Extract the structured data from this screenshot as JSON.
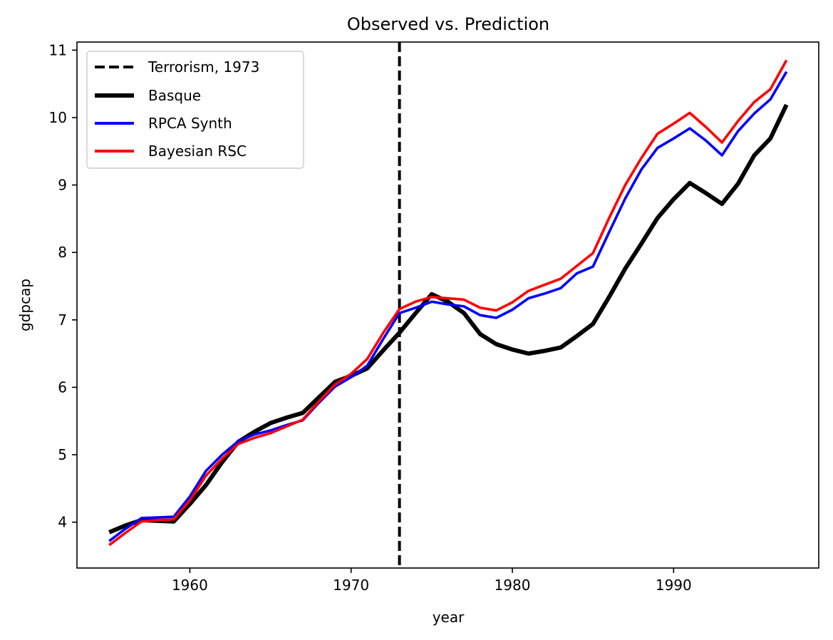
{
  "chart_data": {
    "type": "line",
    "title": "Observed vs. Prediction",
    "xlabel": "year",
    "ylabel": "gdpcap",
    "xlim": [
      1953,
      1999
    ],
    "ylim": [
      3.32,
      11.12
    ],
    "xticks": [
      1960,
      1970,
      1980,
      1990
    ],
    "yticks": [
      4,
      5,
      6,
      7,
      8,
      9,
      10,
      11
    ],
    "grid": false,
    "legend_position": "top-left",
    "x": [
      1955,
      1956,
      1957,
      1958,
      1959,
      1960,
      1961,
      1962,
      1963,
      1964,
      1965,
      1966,
      1967,
      1968,
      1969,
      1970,
      1971,
      1972,
      1973,
      1974,
      1975,
      1976,
      1977,
      1978,
      1979,
      1980,
      1981,
      1982,
      1983,
      1984,
      1985,
      1986,
      1987,
      1988,
      1989,
      1990,
      1991,
      1992,
      1993,
      1994,
      1995,
      1996,
      1997
    ],
    "vline": {
      "x": 1973,
      "label": "Terrorism, 1973",
      "color": "#000000",
      "style": "dashed"
    },
    "series": [
      {
        "name": "Basque",
        "color": "#000000",
        "width": "thick",
        "values": [
          3.85,
          3.95,
          4.03,
          4.02,
          4.01,
          4.27,
          4.55,
          4.89,
          5.19,
          5.34,
          5.47,
          5.55,
          5.62,
          5.85,
          6.08,
          6.17,
          6.28,
          6.55,
          6.81,
          7.1,
          7.38,
          7.27,
          7.1,
          6.79,
          6.64,
          6.56,
          6.5,
          6.54,
          6.59,
          6.76,
          6.94,
          7.34,
          7.76,
          8.13,
          8.51,
          8.79,
          9.03,
          8.88,
          8.72,
          9.02,
          9.44,
          9.69,
          10.19
        ]
      },
      {
        "name": "RPCA Synth",
        "color": "#0000ff",
        "width": "normal",
        "values": [
          3.72,
          3.9,
          4.06,
          4.07,
          4.08,
          4.38,
          4.76,
          5.0,
          5.2,
          5.3,
          5.36,
          5.44,
          5.51,
          5.77,
          6.01,
          6.15,
          6.32,
          6.72,
          7.1,
          7.18,
          7.27,
          7.23,
          7.2,
          7.07,
          7.03,
          7.15,
          7.32,
          7.39,
          7.47,
          7.69,
          7.79,
          8.3,
          8.8,
          9.23,
          9.55,
          9.69,
          9.84,
          9.66,
          9.44,
          9.8,
          10.06,
          10.27,
          10.68
        ]
      },
      {
        "name": "Bayesian RSC",
        "color": "#ff0000",
        "width": "normal",
        "values": [
          3.66,
          3.84,
          4.01,
          4.03,
          4.04,
          4.32,
          4.69,
          4.94,
          5.16,
          5.25,
          5.32,
          5.42,
          5.52,
          5.79,
          6.04,
          6.2,
          6.42,
          6.81,
          7.16,
          7.27,
          7.34,
          7.32,
          7.3,
          7.18,
          7.14,
          7.26,
          7.43,
          7.52,
          7.61,
          7.8,
          7.99,
          8.51,
          9.0,
          9.4,
          9.76,
          9.91,
          10.07,
          9.86,
          9.63,
          9.95,
          10.23,
          10.42,
          10.85
        ]
      }
    ]
  }
}
